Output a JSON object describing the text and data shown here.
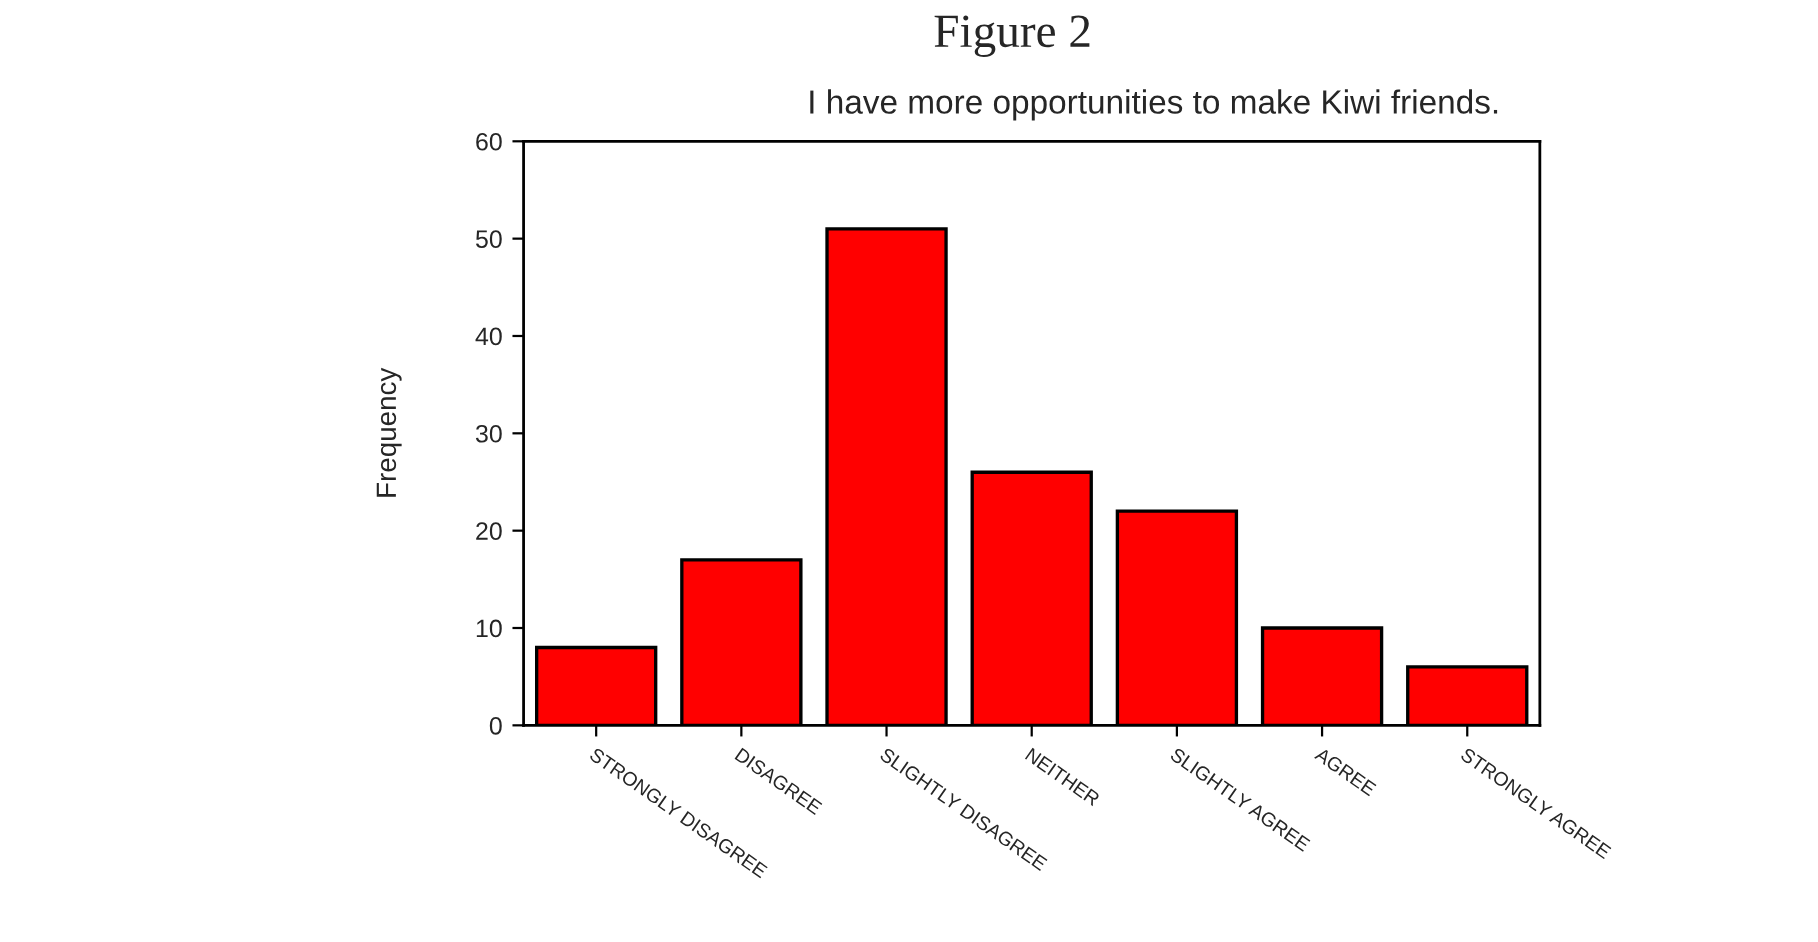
{
  "chart_data": {
    "type": "bar",
    "title": "Figure 2",
    "subtitle": "I have more opportunities to make Kiwi friends.",
    "ylabel": "Frequency",
    "categories": [
      "STRONGLY DISAGREE",
      "DISAGREE",
      "SLIGHTLY DISAGREE",
      "NEITHER",
      "SLIGHTLY AGREE",
      "AGREE",
      "STRONGLY AGREE"
    ],
    "values": [
      8,
      17,
      51,
      26,
      22,
      10,
      6
    ],
    "color": "#ff0000",
    "ylim": [
      0,
      60
    ],
    "yticks": [
      0,
      10,
      20,
      30,
      40,
      50,
      60
    ],
    "grid": false
  }
}
